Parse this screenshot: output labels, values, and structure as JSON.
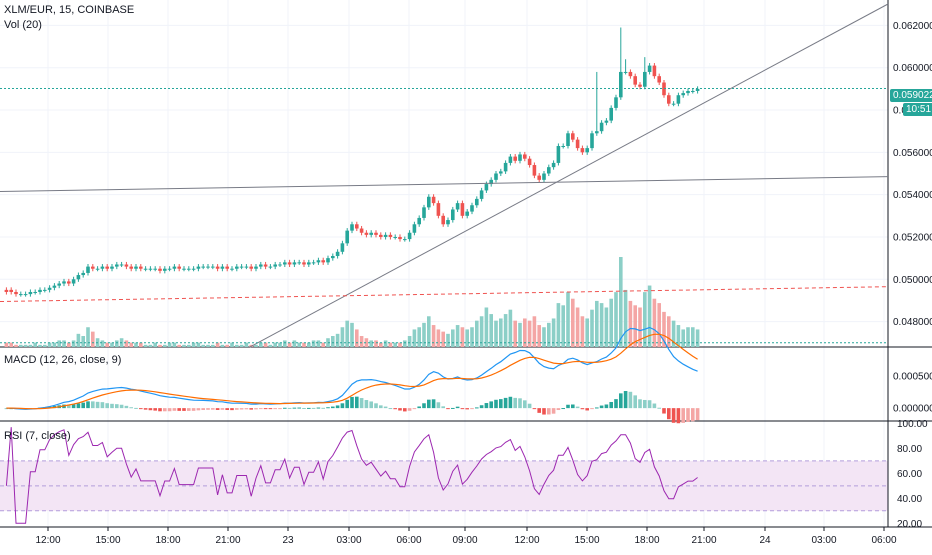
{
  "header": {
    "symbol_line": "XLM/EUR, 15, COINBASE",
    "volume_label": "Vol (20)"
  },
  "colors": {
    "up": "#26a69a",
    "down": "#ef5350",
    "up_volume": "#8ccfc7",
    "down_volume": "#f4a6a5",
    "macd_line": "#2196f3",
    "signal_line": "#ff6d00",
    "rsi_line": "#9c27b0",
    "rsi_band": "#f3e5f5",
    "current_price": "#26a69a",
    "trend_line": "#787b86",
    "dashed_level": "#ef5350",
    "grid": "#f0f3fa"
  },
  "current_price": {
    "label": "0.059022",
    "countdown": "10:51"
  },
  "chart_data": [
    {
      "type": "candlestick",
      "title": "XLM/EUR, 15, COINBASE",
      "ylim": [
        0.0468,
        0.0632
      ],
      "yticks": [
        "0.048000",
        "0.050000",
        "0.052000",
        "0.054000",
        "0.056000",
        "0.058000",
        "0.060000",
        "0.062000"
      ],
      "ytick_values": [
        0.048,
        0.05,
        0.052,
        0.054,
        0.056,
        0.058,
        0.06,
        0.062
      ],
      "x_ticks": [
        "12:00",
        "15:00",
        "18:00",
        "21:00",
        "23",
        "03:00",
        "06:00",
        "09:00",
        "12:00",
        "15:00",
        "18:00",
        "21:00",
        "24",
        "03:00",
        "06:00"
      ],
      "close": [
        0.0494,
        0.0494,
        0.0493,
        0.0493,
        0.0493,
        0.0494,
        0.0494,
        0.0495,
        0.0495,
        0.0496,
        0.0497,
        0.0498,
        0.0499,
        0.0498,
        0.05,
        0.0502,
        0.0503,
        0.0506,
        0.0505,
        0.0505,
        0.0506,
        0.0505,
        0.0506,
        0.0507,
        0.0507,
        0.0506,
        0.0505,
        0.0506,
        0.0505,
        0.0505,
        0.0505,
        0.0505,
        0.0504,
        0.0505,
        0.0505,
        0.0506,
        0.0505,
        0.0505,
        0.0505,
        0.0505,
        0.0506,
        0.0506,
        0.0506,
        0.0506,
        0.0505,
        0.0506,
        0.0505,
        0.0505,
        0.0506,
        0.0506,
        0.0506,
        0.0505,
        0.0506,
        0.0507,
        0.0506,
        0.0506,
        0.0507,
        0.0507,
        0.0508,
        0.0507,
        0.0508,
        0.0508,
        0.0507,
        0.0508,
        0.0508,
        0.0509,
        0.0508,
        0.051,
        0.0511,
        0.0513,
        0.0517,
        0.0523,
        0.0526,
        0.0524,
        0.0522,
        0.0521,
        0.0522,
        0.0521,
        0.052,
        0.0521,
        0.052,
        0.052,
        0.0519,
        0.0519,
        0.0522,
        0.0526,
        0.0529,
        0.0534,
        0.0539,
        0.0536,
        0.053,
        0.0526,
        0.0528,
        0.0533,
        0.0536,
        0.053,
        0.0532,
        0.0535,
        0.0538,
        0.0542,
        0.0545,
        0.0547,
        0.055,
        0.0551,
        0.0555,
        0.0558,
        0.0556,
        0.0559,
        0.0557,
        0.0554,
        0.0549,
        0.0547,
        0.055,
        0.0553,
        0.0555,
        0.0563,
        0.0563,
        0.0569,
        0.0566,
        0.0562,
        0.056,
        0.0562,
        0.0569,
        0.057,
        0.0574,
        0.0575,
        0.0581,
        0.0586,
        0.0598,
        0.0598,
        0.0596,
        0.0592,
        0.0591,
        0.0598,
        0.0601,
        0.0596,
        0.0593,
        0.0587,
        0.0583,
        0.0583,
        0.0587,
        0.0588,
        0.0589,
        0.0589,
        0.059
      ],
      "open": [
        0.0495,
        0.0495,
        0.0494,
        0.0493,
        0.0493,
        0.0493,
        0.0494,
        0.0494,
        0.0495,
        0.0495,
        0.0496,
        0.0497,
        0.0498,
        0.0499,
        0.0498,
        0.05,
        0.0502,
        0.0503,
        0.0506,
        0.0505,
        0.0505,
        0.0506,
        0.0505,
        0.0506,
        0.0507,
        0.0507,
        0.0506,
        0.0505,
        0.0506,
        0.0505,
        0.0505,
        0.0505,
        0.0505,
        0.0504,
        0.0505,
        0.0505,
        0.0506,
        0.0505,
        0.0505,
        0.0505,
        0.0505,
        0.0506,
        0.0506,
        0.0506,
        0.0506,
        0.0505,
        0.0506,
        0.0505,
        0.0505,
        0.0506,
        0.0506,
        0.0506,
        0.0505,
        0.0506,
        0.0507,
        0.0506,
        0.0506,
        0.0507,
        0.0507,
        0.0508,
        0.0507,
        0.0508,
        0.0508,
        0.0507,
        0.0508,
        0.0508,
        0.0509,
        0.0508,
        0.051,
        0.0511,
        0.0513,
        0.0517,
        0.0523,
        0.0526,
        0.0524,
        0.0522,
        0.0521,
        0.0522,
        0.0521,
        0.052,
        0.0521,
        0.052,
        0.052,
        0.0519,
        0.0519,
        0.0522,
        0.0526,
        0.0529,
        0.0534,
        0.0539,
        0.0536,
        0.053,
        0.0526,
        0.0528,
        0.0533,
        0.0536,
        0.053,
        0.0532,
        0.0535,
        0.0538,
        0.0542,
        0.0545,
        0.0547,
        0.055,
        0.0551,
        0.0555,
        0.0558,
        0.0556,
        0.0559,
        0.0557,
        0.0554,
        0.0549,
        0.0547,
        0.055,
        0.0553,
        0.0555,
        0.0563,
        0.0563,
        0.0569,
        0.0566,
        0.0562,
        0.056,
        0.0562,
        0.0569,
        0.057,
        0.0574,
        0.0575,
        0.0581,
        0.0586,
        0.0598,
        0.0598,
        0.0596,
        0.0592,
        0.0591,
        0.0598,
        0.0601,
        0.0596,
        0.0593,
        0.0587,
        0.0583,
        0.0583,
        0.0587,
        0.0588,
        0.0589,
        0.0589
      ],
      "spikes": {
        "123": 0.0598,
        "128": 0.0619,
        "129": 0.0604,
        "133": 0.0605
      },
      "volume": [
        2,
        2,
        1,
        1,
        1,
        1,
        2,
        1,
        1,
        2,
        2,
        3,
        3,
        2,
        3,
        6,
        5,
        9,
        7,
        4,
        3,
        2,
        2,
        3,
        4,
        3,
        2,
        2,
        2,
        1,
        1,
        2,
        1,
        1,
        2,
        2,
        1,
        1,
        1,
        2,
        2,
        1,
        1,
        1,
        2,
        1,
        1,
        2,
        1,
        1,
        2,
        1,
        1,
        2,
        2,
        1,
        2,
        2,
        3,
        2,
        3,
        2,
        2,
        2,
        3,
        3,
        2,
        4,
        5,
        6,
        9,
        12,
        11,
        8,
        5,
        4,
        3,
        3,
        2,
        3,
        2,
        2,
        2,
        3,
        5,
        8,
        9,
        11,
        14,
        10,
        8,
        7,
        6,
        8,
        10,
        9,
        8,
        9,
        12,
        14,
        18,
        15,
        12,
        13,
        15,
        17,
        12,
        11,
        13,
        12,
        14,
        10,
        9,
        11,
        13,
        20,
        19,
        25,
        22,
        18,
        14,
        13,
        17,
        21,
        20,
        18,
        22,
        25,
        41,
        26,
        21,
        19,
        18,
        25,
        28,
        22,
        20,
        16,
        14,
        12,
        10,
        8,
        9,
        9,
        8
      ],
      "volume_max": 41
    },
    {
      "type": "line",
      "title": "MACD (12, 26, close, 9)",
      "ylim": [
        -0.0002,
        0.00095
      ],
      "yticks": [
        "0.000500",
        "0.000000"
      ],
      "ytick_values": [
        0.0005,
        0.0
      ]
    },
    {
      "type": "line",
      "title": "RSI (7, close)",
      "ylim": [
        17,
        102
      ],
      "yticks": [
        "100.00",
        "80.00",
        "60.00",
        "40.00",
        "20.00"
      ],
      "ytick_values": [
        100,
        80,
        60,
        40,
        20
      ],
      "band": [
        30,
        70
      ]
    }
  ]
}
